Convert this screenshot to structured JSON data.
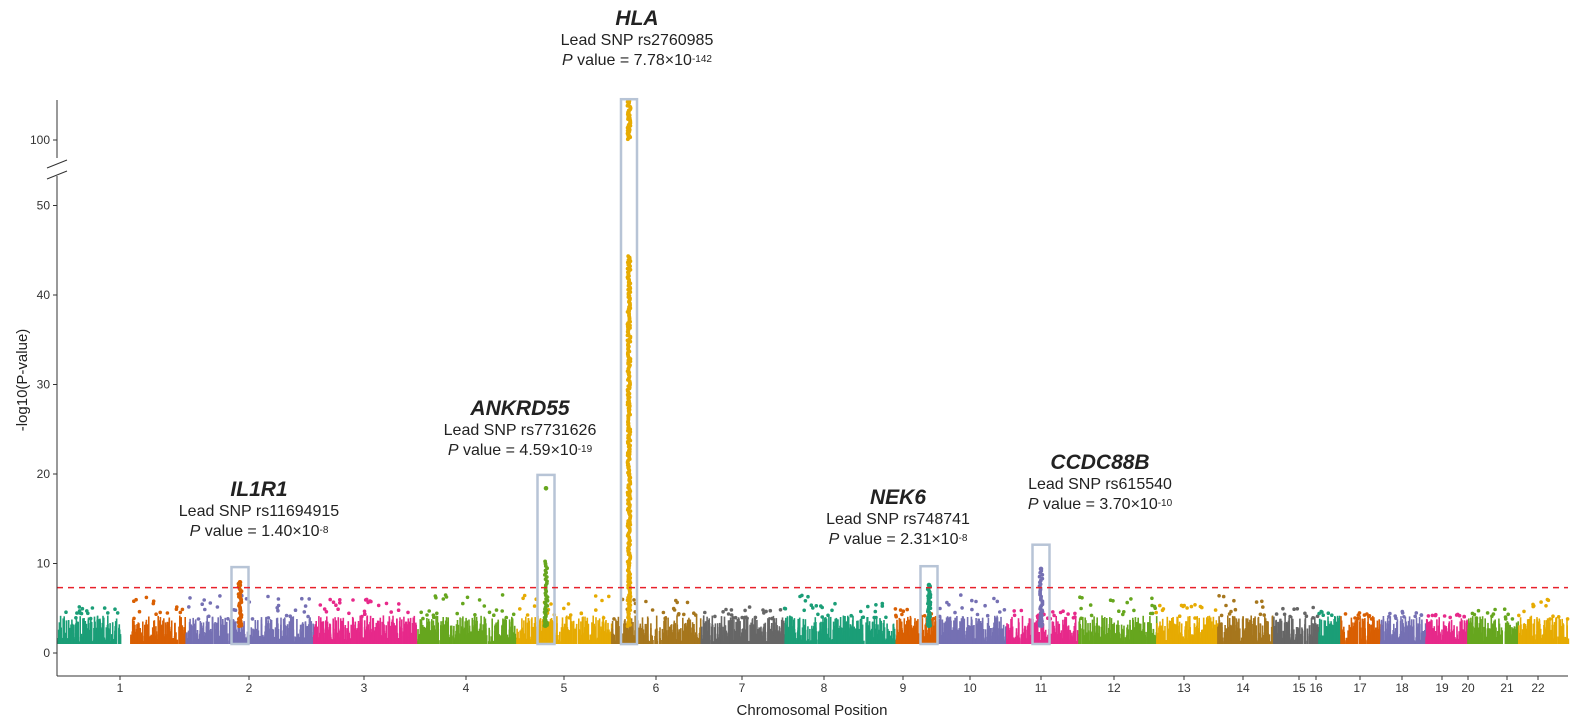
{
  "chart_data": {
    "type": "scatter",
    "subtype": "manhattan",
    "xlabel": "Chromosomal Position",
    "ylabel": "-log10(P-value)",
    "y_ticks": [
      0,
      10,
      20,
      30,
      40,
      50,
      100
    ],
    "y_axis_break": [
      50,
      100
    ],
    "significance_threshold": 7.3,
    "threshold_color": "#e8212b",
    "chromosome_colors": [
      "#1b9e77",
      "#d95f02",
      "#7570b3",
      "#e7298a",
      "#66a61e",
      "#e6ab02",
      "#a6761d",
      "#666666"
    ],
    "chromosomes": [
      {
        "label": "1",
        "color": "#1b9e77",
        "max_y": 5.2
      },
      {
        "label": "2",
        "color": "#d95f02",
        "max_y": 7.9
      },
      {
        "label": "3",
        "color": "#7570b3",
        "max_y": 6.5
      },
      {
        "label": "4",
        "color": "#e7298a",
        "max_y": 6.0
      },
      {
        "label": "5",
        "color": "#66a61e",
        "max_y": 18.4
      },
      {
        "label": "6",
        "color": "#e6ab02",
        "max_y": 141.1
      },
      {
        "label": "7",
        "color": "#a6761d",
        "max_y": 6.2
      },
      {
        "label": "8",
        "color": "#666666",
        "max_y": 5.2
      },
      {
        "label": "9",
        "color": "#1b9e77",
        "max_y": 7.6
      },
      {
        "label": "10",
        "color": "#d95f02",
        "max_y": 5.0
      },
      {
        "label": "11",
        "color": "#7570b3",
        "max_y": 9.4
      },
      {
        "label": "12",
        "color": "#e7298a",
        "max_y": 4.8
      },
      {
        "label": "13",
        "color": "#66a61e",
        "max_y": 7.0
      },
      {
        "label": "14",
        "color": "#e6ab02",
        "max_y": 5.5
      },
      {
        "label": "15",
        "color": "#a6761d",
        "max_y": 6.8
      },
      {
        "label": "16",
        "color": "#666666",
        "max_y": 5.3
      },
      {
        "label": "17",
        "color": "#1b9e77",
        "max_y": 4.7
      },
      {
        "label": "18",
        "color": "#d95f02",
        "max_y": 4.5
      },
      {
        "label": "19",
        "color": "#7570b3",
        "max_y": 4.9
      },
      {
        "label": "20",
        "color": "#e7298a",
        "max_y": 4.4
      },
      {
        "label": "21",
        "color": "#66a61e",
        "max_y": 5.2
      },
      {
        "label": "22",
        "color": "#e6ab02",
        "max_y": 6.0
      }
    ],
    "highlights": [
      {
        "gene": "IL1R1",
        "chromosome": "2",
        "snp_line": "Lead SNP rs11694915",
        "p_prefix": "P",
        "p_mid": " value = 1.40×10",
        "p_exp": "-8",
        "lead_y": 7.9,
        "box_ymax": 9.6
      },
      {
        "gene": "ANKRD55",
        "chromosome": "5",
        "snp_line": "Lead SNP rs7731626",
        "p_prefix": "P",
        "p_mid": " value = 4.59×10",
        "p_exp": "-19",
        "lead_y": 18.4,
        "box_ymax": 19.9
      },
      {
        "gene": "HLA",
        "chromosome": "6",
        "snp_line": "Lead SNP rs2760985",
        "p_prefix": "P",
        "p_mid": " value = 7.78×10",
        "p_exp": "-142",
        "lead_y": 141.1,
        "box_ymax": 143
      },
      {
        "gene": "NEK6",
        "chromosome": "9",
        "snp_line": "Lead SNP rs748741",
        "p_prefix": "P",
        "p_mid": " value = 2.31×10",
        "p_exp": "-8",
        "lead_y": 7.6,
        "box_ymax": 9.7
      },
      {
        "gene": "CCDC88B",
        "chromosome": "11",
        "snp_line": "Lead SNP rs615540",
        "p_prefix": "P",
        "p_mid": " value = 3.70×10",
        "p_exp": "-10",
        "lead_y": 9.4,
        "box_ymax": 12.1
      }
    ]
  }
}
